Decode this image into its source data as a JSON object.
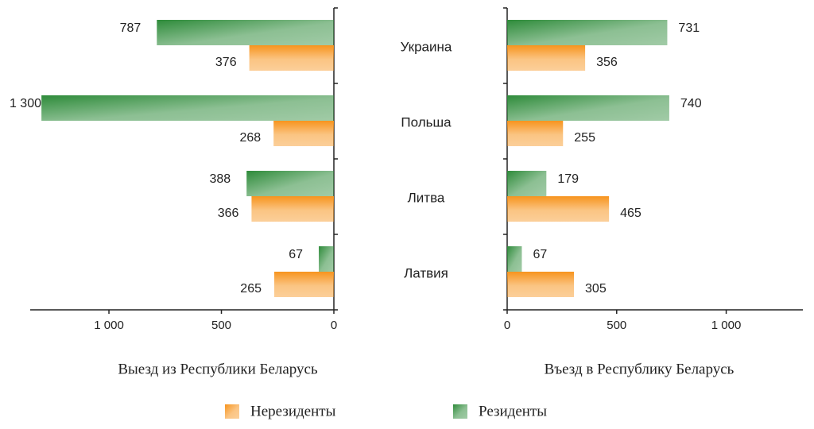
{
  "chart_data": [
    {
      "type": "bar",
      "orientation": "horizontal",
      "direction": "left",
      "categories": [
        "Украина",
        "Польша",
        "Литва",
        "Латвия"
      ],
      "xlabel": "Выезд из Республики Беларусь",
      "xlim": [
        0,
        1350
      ],
      "xticks": [
        0,
        500,
        {
          "value": 1000,
          "label": "1 000"
        }
      ],
      "series": [
        {
          "name": "Нерезиденты",
          "color": "#f7941d",
          "values": [
            376,
            268,
            366,
            265
          ]
        },
        {
          "name": "Резиденты",
          "color": "#2e8b3a",
          "values": [
            787,
            1300,
            388,
            67
          ],
          "value_labels": [
            "787",
            "1 300",
            "388",
            "67"
          ]
        }
      ]
    },
    {
      "type": "bar",
      "orientation": "horizontal",
      "direction": "right",
      "xlabel": "Въезд в Республику Беларусь",
      "xlim": [
        0,
        1350
      ],
      "xticks": [
        0,
        500,
        {
          "value": 1000,
          "label": "1 000"
        }
      ],
      "series": [
        {
          "color": "#f7941d",
          "values": [
            356,
            255,
            465,
            305
          ]
        },
        {
          "color": "#2e8b3a",
          "values": [
            731,
            740,
            179,
            67
          ]
        }
      ]
    }
  ]
}
